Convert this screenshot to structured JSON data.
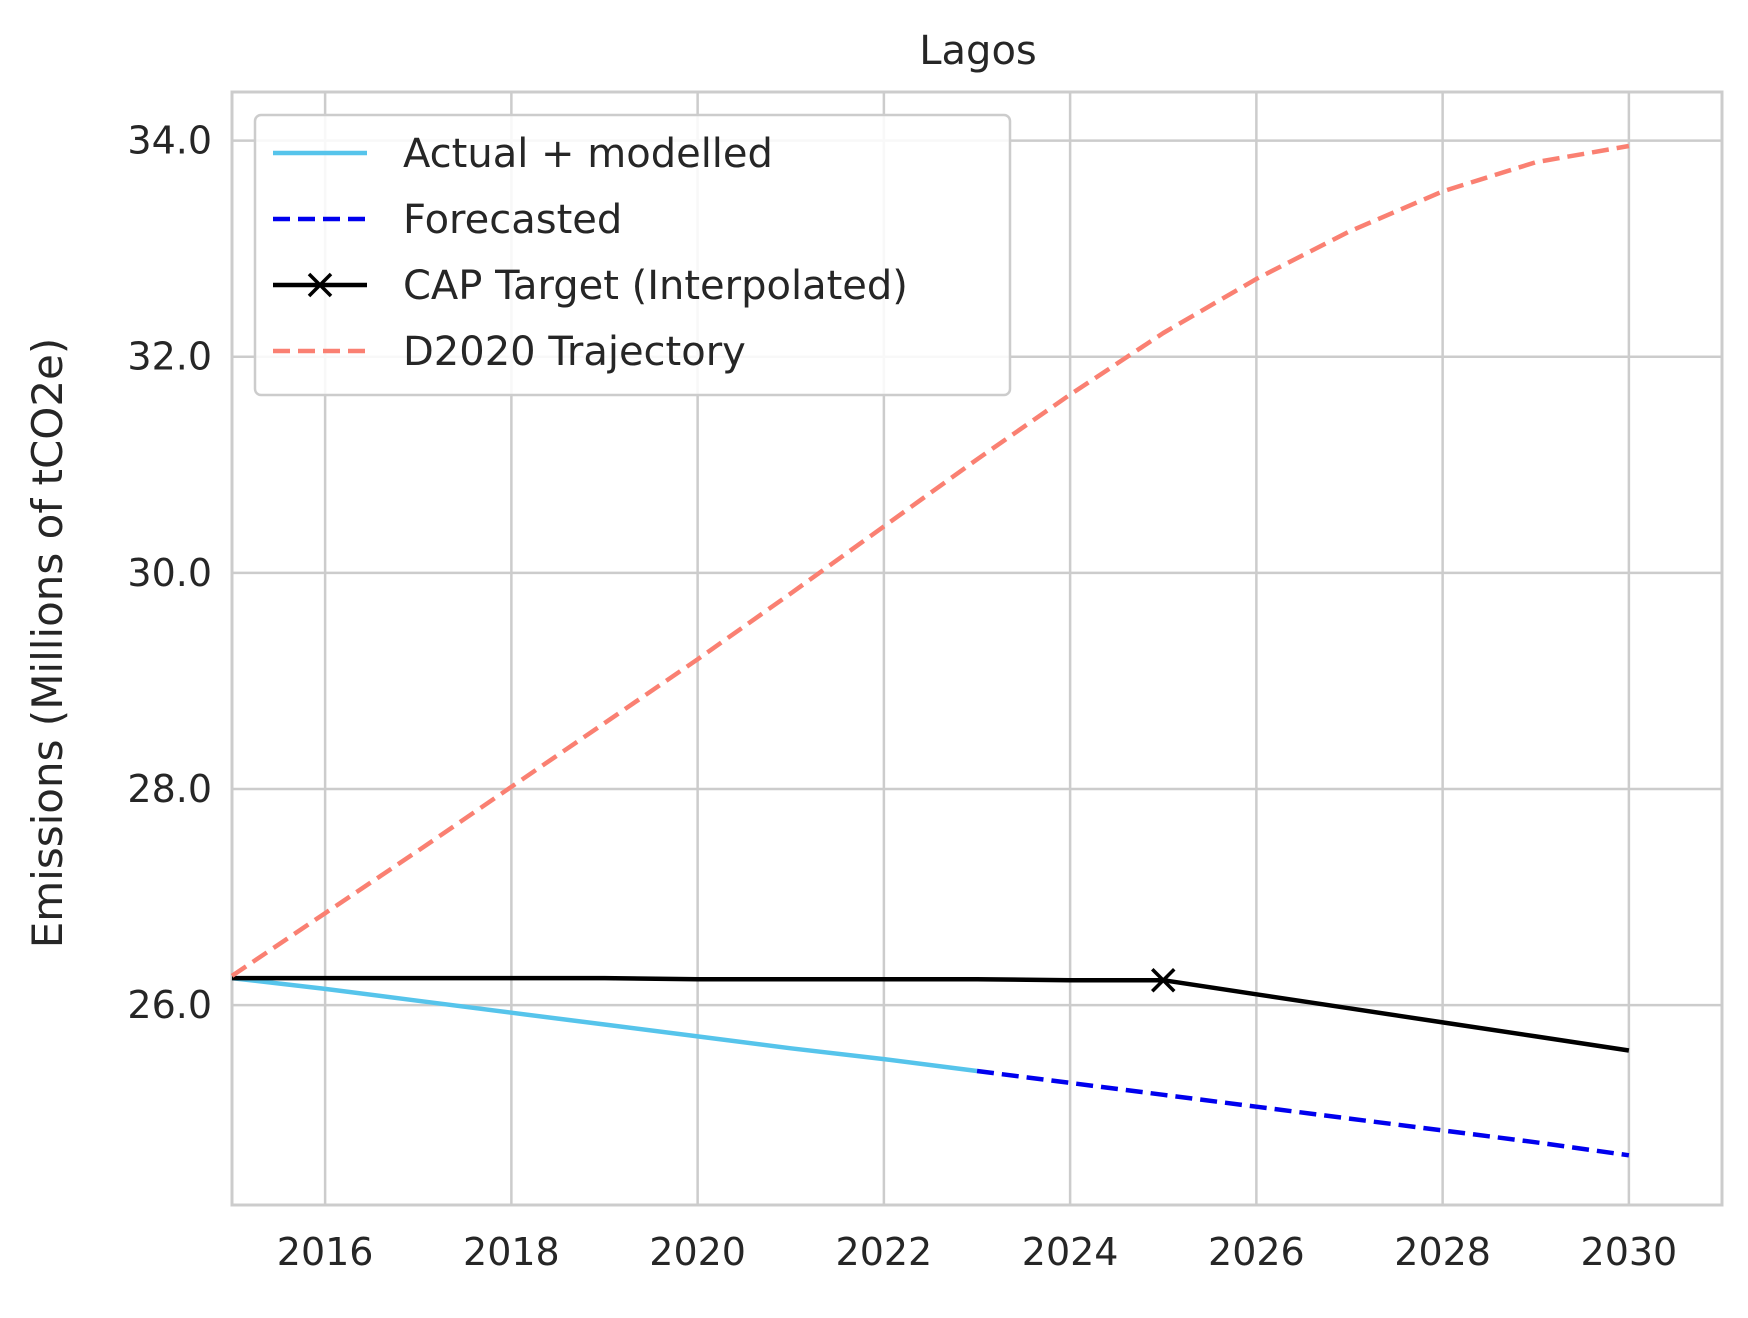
{
  "chart_data": {
    "type": "line",
    "title": "Lagos",
    "xlabel": "",
    "ylabel": "Emissions (Millions of tCO2e)",
    "xlim": [
      2015,
      2031
    ],
    "ylim": [
      24.15,
      34.45
    ],
    "xticks": [
      2016,
      2018,
      2020,
      2022,
      2024,
      2026,
      2028,
      2030
    ],
    "yticks": [
      26.0,
      28.0,
      30.0,
      32.0,
      34.0
    ],
    "xtick_labels": [
      "2016",
      "2018",
      "2020",
      "2022",
      "2024",
      "2026",
      "2028",
      "2030"
    ],
    "ytick_labels": [
      "26.0",
      "28.0",
      "30.0",
      "32.0",
      "34.0"
    ],
    "grid": true,
    "legend_position": "top-left",
    "series": [
      {
        "name": "Actual + modelled",
        "color": "#56c4eb",
        "style": "solid",
        "marker": "none",
        "x": [
          2015,
          2016,
          2017,
          2018,
          2019,
          2020,
          2021,
          2022,
          2023
        ],
        "y": [
          26.25,
          26.15,
          26.04,
          25.93,
          25.82,
          25.71,
          25.6,
          25.5,
          25.39
        ]
      },
      {
        "name": "Forecasted",
        "color": "#0000ee",
        "style": "dashed",
        "marker": "none",
        "x": [
          2023,
          2024,
          2025,
          2026,
          2027,
          2028,
          2029,
          2030
        ],
        "y": [
          25.39,
          25.28,
          25.17,
          25.06,
          24.95,
          24.84,
          24.73,
          24.61
        ]
      },
      {
        "name": "CAP Target (Interpolated)",
        "color": "#000000",
        "style": "solid",
        "marker": "x",
        "marker_x": [
          2025
        ],
        "marker_y": [
          26.23
        ],
        "x": [
          2015,
          2016,
          2017,
          2018,
          2019,
          2020,
          2021,
          2022,
          2023,
          2024,
          2025,
          2026,
          2027,
          2028,
          2029,
          2030
        ],
        "y": [
          26.25,
          26.25,
          26.25,
          26.25,
          26.25,
          26.24,
          26.24,
          26.24,
          26.24,
          26.23,
          26.23,
          26.1,
          25.97,
          25.84,
          25.71,
          25.58
        ]
      },
      {
        "name": "D2020 Trajectory",
        "color": "#fa8072",
        "style": "dashed",
        "marker": "none",
        "x": [
          2015,
          2016,
          2017,
          2018,
          2019,
          2020,
          2021,
          2022,
          2023,
          2024,
          2025,
          2026,
          2027,
          2028,
          2029,
          2030
        ],
        "y": [
          26.27,
          26.85,
          27.43,
          28.02,
          28.61,
          29.2,
          29.81,
          30.43,
          31.05,
          31.65,
          32.22,
          32.72,
          33.16,
          33.53,
          33.8,
          33.95
        ]
      }
    ]
  }
}
